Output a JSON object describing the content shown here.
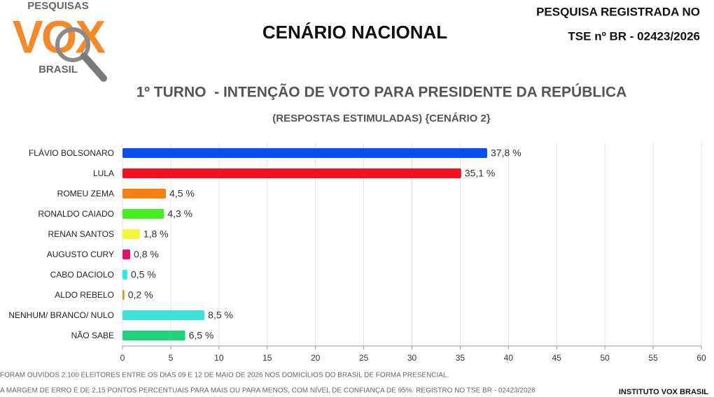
{
  "logo": {
    "top": "PESQUISAS",
    "main": "VOX",
    "bottom": "BRASIL"
  },
  "header": {
    "title": "CENÁRIO NACIONAL",
    "registration": [
      "PESQUISA REGISTRADA NO",
      "TSE nº BR - 02423/2026"
    ]
  },
  "chart_data": {
    "type": "bar",
    "orientation": "horizontal",
    "title": "1º TURNO  - INTENÇÃO DE VOTO PARA PRESIDENTE DA REPÚBLICA",
    "subtitle": "(RESPOSTAS ESTIMULADAS) {CENÁRIO 2}",
    "categories": [
      "FLÁVIO BOLSONARO",
      "LULA",
      "ROMEU ZEMA",
      "RONALDO CAIADO",
      "RENAN SANTOS",
      "AUGUSTO CURY",
      "CABO DACIOLO",
      "ALDO REBELO",
      "NENHUM/ BRANCO/ NULO",
      "NÃO SABE"
    ],
    "values": [
      37.8,
      35.1,
      4.5,
      4.3,
      1.8,
      0.8,
      0.5,
      0.2,
      8.5,
      6.5
    ],
    "value_labels": [
      "37,8 %",
      "35,1 %",
      "4,5 %",
      "4,3 %",
      "1,8 %",
      "0,8 %",
      "0,5 %",
      "0,2 %",
      "8,5 %",
      "6,5 %"
    ],
    "colors": [
      "#0a4ff0",
      "#f0101a",
      "#f57f0f",
      "#44ee22",
      "#f5f53a",
      "#e8106e",
      "#2ee8f0",
      "#d89a10",
      "#40e0d8",
      "#22d47a"
    ],
    "xlim": [
      0,
      60
    ],
    "xticks": [
      0,
      5,
      10,
      15,
      20,
      25,
      30,
      35,
      40,
      45,
      50,
      55,
      60
    ],
    "grid": true
  },
  "footer": {
    "notes": [
      "FORAM OUVIDOS 2.100 ELEITORES ENTRE OS DIAS 09 E 12 DE MAIO DE 2026 NOS DOMICÍLIOS DO BRASIL DE FORMA PRESENCIAL.",
      "A MARGEM DE ERRO É DE 2,15 PONTOS PERCENTUAIS PARA MAIS OU PARA MENOS, COM NÍVEL DE CONFIANÇA DE 95%. REGISTRO NO TSE BR - 02423/2026"
    ],
    "source": "INSTITUTO VOX BRASIL"
  }
}
